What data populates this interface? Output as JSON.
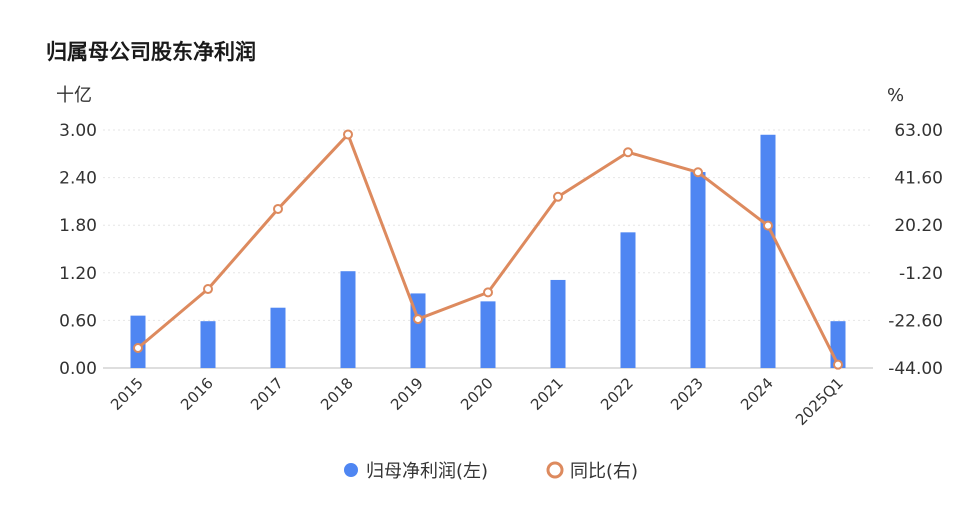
{
  "chart_data": {
    "type": "bar+line",
    "title": "归属母公司股东净利润",
    "categories": [
      "2015",
      "2016",
      "2017",
      "2018",
      "2019",
      "2020",
      "2021",
      "2022",
      "2023",
      "2024",
      "2025Q1"
    ],
    "series": [
      {
        "name": "归母净利润(左)",
        "type": "bar",
        "axis": "left",
        "color": "#4f86f2",
        "values": [
          0.66,
          0.59,
          0.76,
          1.22,
          0.94,
          0.84,
          1.11,
          1.71,
          2.47,
          2.94,
          0.59
        ]
      },
      {
        "name": "同比(右)",
        "type": "line",
        "axis": "right",
        "color": "#dd8a5e",
        "values": [
          -35.0,
          -8.5,
          27.5,
          61.0,
          -22.0,
          -10.0,
          33.0,
          53.0,
          44.0,
          20.0,
          -42.5
        ]
      }
    ],
    "y_left": {
      "unit": "十亿",
      "ylim": [
        0,
        3.0
      ],
      "ticks": [
        "3.00",
        "2.40",
        "1.80",
        "1.20",
        "0.60",
        "0.00"
      ]
    },
    "y_right": {
      "unit": "%",
      "ylim": [
        -44.0,
        63.0
      ],
      "ticks": [
        "63.00",
        "41.60",
        "20.20",
        "-1.20",
        "-22.60",
        "-44.00"
      ]
    },
    "grid": true,
    "legend_position": "bottom-center"
  }
}
